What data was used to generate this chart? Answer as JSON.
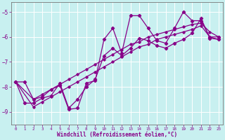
{
  "xlabel": "Windchill (Refroidissement éolien,°C)",
  "bg_color": "#c8f0f0",
  "line_color": "#880088",
  "grid_color": "#aadddd",
  "xlim": [
    -0.5,
    23.5
  ],
  "ylim": [
    -9.5,
    -4.6
  ],
  "yticks": [
    -9,
    -8,
    -7,
    -6,
    -5
  ],
  "xticks": [
    0,
    1,
    2,
    3,
    4,
    5,
    6,
    7,
    8,
    9,
    10,
    11,
    12,
    13,
    14,
    15,
    16,
    17,
    18,
    19,
    20,
    21,
    22,
    23
  ],
  "line1_x": [
    0,
    1,
    2,
    3,
    4,
    5,
    6,
    7,
    8,
    9,
    10,
    11,
    12,
    13,
    14,
    15,
    16,
    17,
    18,
    19,
    20,
    21,
    22,
    23
  ],
  "line1_y": [
    -7.8,
    -7.8,
    -8.5,
    -8.4,
    -8.1,
    -7.95,
    -8.9,
    -8.85,
    -7.85,
    -7.75,
    -6.1,
    -5.65,
    -6.65,
    -5.15,
    -5.15,
    -5.65,
    -6.15,
    -6.25,
    -5.65,
    -5.0,
    -5.35,
    -5.35,
    -6.0,
    -6.0
  ],
  "line2_x": [
    0,
    1,
    2,
    3,
    4,
    5,
    6,
    7,
    8,
    9,
    10,
    11,
    12,
    13,
    14,
    15,
    16,
    17,
    18,
    19,
    20,
    21,
    22,
    23
  ],
  "line2_y": [
    -7.8,
    -8.65,
    -8.65,
    -8.45,
    -8.35,
    -7.85,
    -8.85,
    -8.5,
    -8.0,
    -7.7,
    -6.75,
    -6.45,
    -6.75,
    -6.45,
    -6.05,
    -6.15,
    -6.35,
    -6.45,
    -6.25,
    -6.1,
    -5.85,
    -5.25,
    -6.05,
    -6.1
  ],
  "line3_x": [
    0,
    2,
    3,
    4,
    5,
    6,
    7,
    8,
    9,
    10,
    11,
    12,
    13,
    14,
    15,
    16,
    17,
    18,
    19,
    20,
    21,
    22,
    23
  ],
  "line3_y": [
    -7.8,
    -8.5,
    -8.3,
    -8.1,
    -7.9,
    -7.7,
    -7.5,
    -7.3,
    -7.1,
    -6.9,
    -6.7,
    -6.5,
    -6.3,
    -6.2,
    -6.0,
    -5.9,
    -5.8,
    -5.7,
    -5.6,
    -5.5,
    -5.45,
    -5.8,
    -6.0
  ],
  "line4_x": [
    0,
    2,
    3,
    4,
    5,
    6,
    7,
    8,
    9,
    10,
    11,
    12,
    13,
    14,
    15,
    16,
    17,
    18,
    19,
    20,
    21,
    22,
    23
  ],
  "line4_y": [
    -7.8,
    -8.8,
    -8.6,
    -8.4,
    -8.2,
    -8.0,
    -7.8,
    -7.6,
    -7.4,
    -7.2,
    -7.0,
    -6.8,
    -6.6,
    -6.4,
    -6.3,
    -6.1,
    -6.0,
    -5.9,
    -5.8,
    -5.7,
    -5.55,
    -6.0,
    -6.1
  ]
}
